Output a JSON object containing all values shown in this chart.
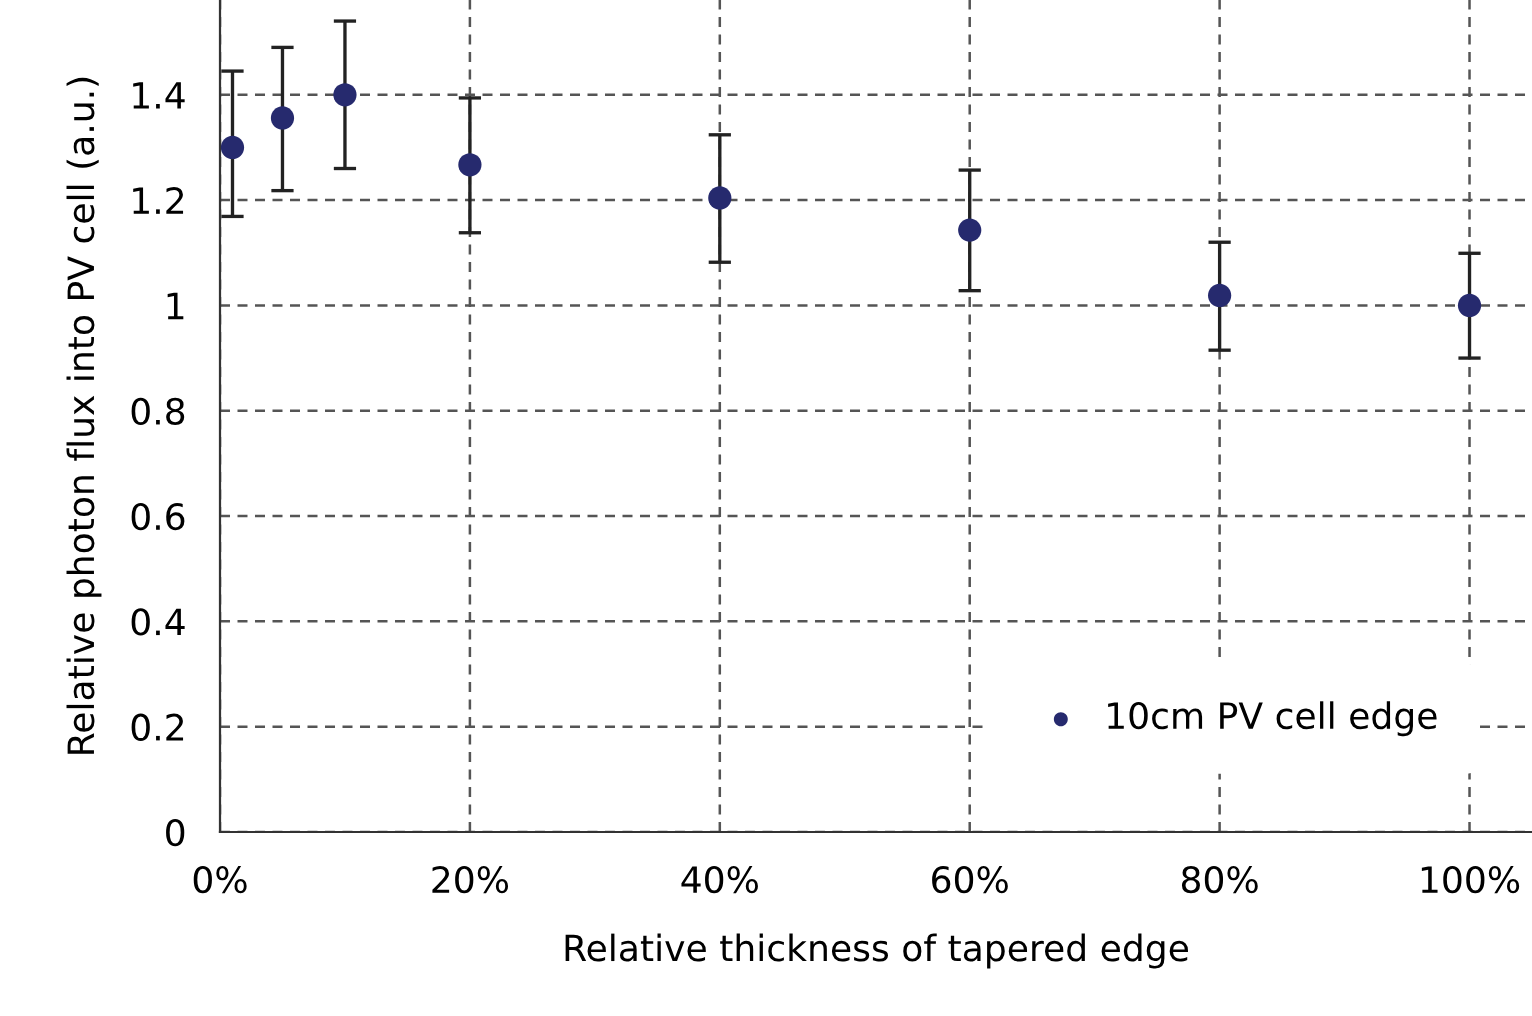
{
  "chart_data": {
    "type": "scatter",
    "xlabel": "Relative thickness of tapered edge",
    "ylabel": "Relative photon flux into PV cell (a.u.)",
    "x": [
      1,
      5,
      10,
      20,
      40,
      60,
      80,
      100
    ],
    "series": [
      {
        "name": "10cm PV cell edge",
        "color": "#262a6e",
        "values": [
          1.3,
          1.356,
          1.4,
          1.267,
          1.204,
          1.143,
          1.019,
          1.0
        ],
        "errors": [
          [
            1.169,
            1.445
          ],
          [
            1.218,
            1.49
          ],
          [
            1.26,
            1.54
          ],
          [
            1.138,
            1.394
          ],
          [
            1.082,
            1.324
          ],
          [
            1.028,
            1.257
          ],
          [
            0.915,
            1.12
          ],
          [
            0.9,
            1.099
          ]
        ]
      }
    ],
    "xlim": [
      0,
      105
    ],
    "xticks": [
      {
        "value": 0,
        "label": "0%"
      },
      {
        "value": 20,
        "label": "20%"
      },
      {
        "value": 40,
        "label": "40%"
      },
      {
        "value": 60,
        "label": "60%"
      },
      {
        "value": 80,
        "label": "80%"
      },
      {
        "value": 100,
        "label": "100%"
      }
    ],
    "ylim": [
      0,
      1.58
    ],
    "yticks": [
      0,
      0.2,
      0.4,
      0.6,
      0.8,
      1,
      1.2,
      1.4
    ],
    "grid": true,
    "legend": "bottom right",
    "marker": "circle"
  }
}
